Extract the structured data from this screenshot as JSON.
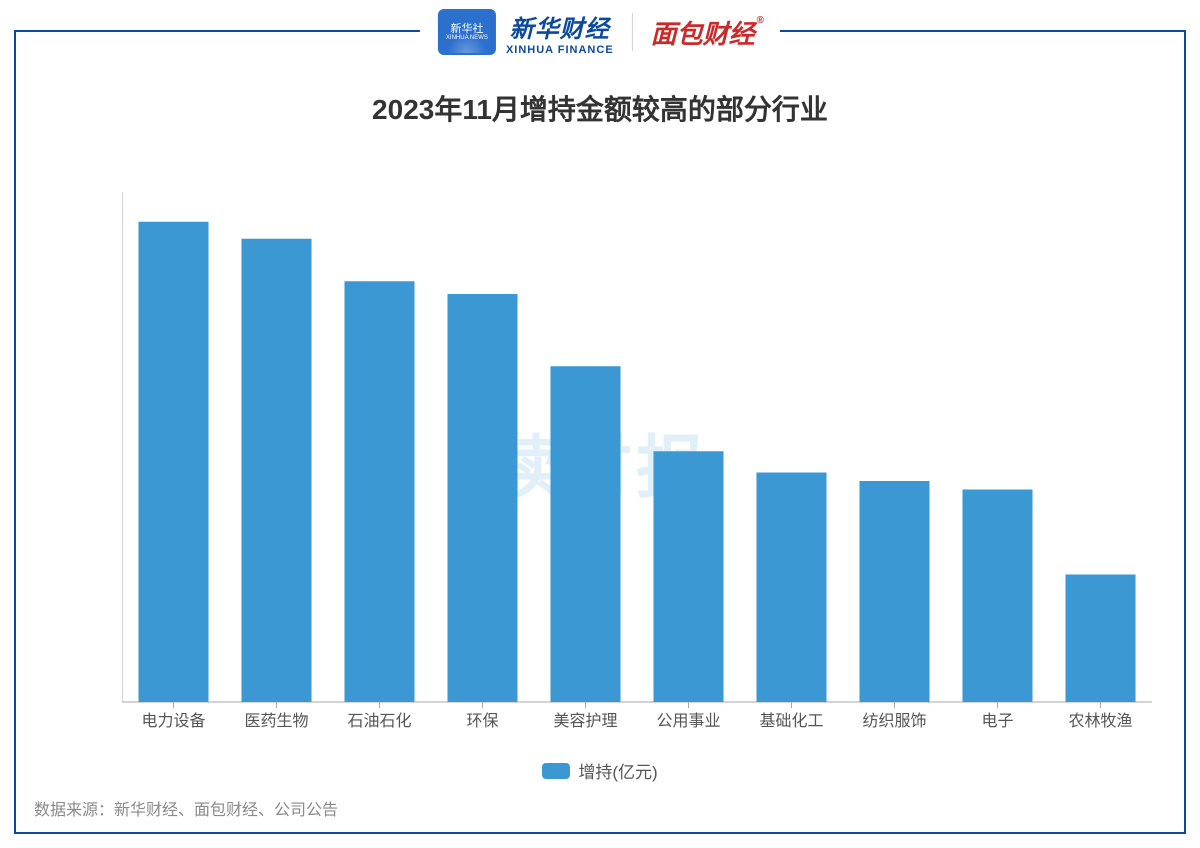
{
  "logos": {
    "xinhua_badge_top": "新华社",
    "xinhua_badge_bottom": "XINHUA NEWS",
    "xinhua_finance_cn": "新华财经",
    "xinhua_finance_en": "XINHUA FINANCE",
    "mianbao": "面包财经",
    "mianbao_reg": "®"
  },
  "chart": {
    "type": "bar",
    "title": "2023年11月增持金额较高的部分行业",
    "title_fontsize": 28,
    "title_color": "#333333",
    "categories": [
      "电力设备",
      "医药生物",
      "石油石化",
      "环保",
      "美容护理",
      "公用事业",
      "基础化工",
      "纺织服饰",
      "电子",
      "农林牧渔"
    ],
    "values": [
      0.565,
      0.545,
      0.495,
      0.48,
      0.395,
      0.295,
      0.27,
      0.26,
      0.25,
      0.15
    ],
    "bar_color": "#3b98d3",
    "bar_width_ratio": 0.68,
    "background_color": "#ffffff",
    "axis_color": "#aaaaaa",
    "tick_color": "#666666",
    "xtick_color": "#555555",
    "y": {
      "min": 0,
      "max": 0.6,
      "step": 0.1,
      "ticks": [
        "0",
        "0.1",
        "0.2",
        "0.3",
        "0.4",
        "0.5",
        "0.6"
      ]
    },
    "x_tick_fontsize": 16,
    "y_tick_fontsize": 16,
    "legend": {
      "label": "增持(亿元)",
      "swatch_color": "#3b98d3",
      "fontsize": 17
    },
    "watermark": {
      "text": "读财报",
      "color": "#3b98d3",
      "opacity": 0.15,
      "fontsize": 68
    },
    "source_label": "数据来源：新华财经、面包财经、公司公告",
    "source_color": "#8a8a8a",
    "frame_border_color": "#0b4a9e"
  }
}
